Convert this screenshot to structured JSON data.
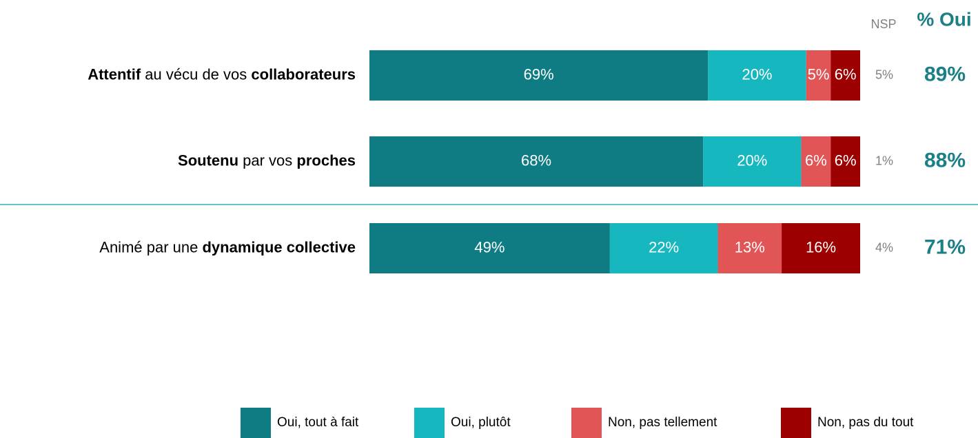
{
  "chart_data": {
    "type": "stacked_bar_horizontal",
    "categories": [
      [
        {
          "text": "Attentif",
          "bold": true
        },
        {
          "text": " au vécu de vos ",
          "bold": false
        },
        {
          "text": "collaborateurs",
          "bold": true
        }
      ],
      [
        {
          "text": "Soutenu",
          "bold": true
        },
        {
          "text": " par vos ",
          "bold": false
        },
        {
          "text": "proches",
          "bold": true
        }
      ],
      [
        {
          "text": "Animé par une ",
          "bold": false
        },
        {
          "text": "dynamique collective",
          "bold": true
        }
      ]
    ],
    "xlim": [
      0,
      100
    ],
    "series": [
      {
        "name": "Oui, tout à fait",
        "color": "#0f7c84",
        "values": [
          69,
          68,
          49
        ],
        "value_labels": [
          "69%",
          "68%",
          "49%"
        ]
      },
      {
        "name": "Oui, plutôt",
        "color": "#17b7c0",
        "values": [
          20,
          20,
          22
        ],
        "value_labels": [
          "20%",
          "20%",
          "22%"
        ]
      },
      {
        "name": "Non, pas tellement",
        "color": "#e15556",
        "values": [
          5,
          6,
          13
        ],
        "value_labels": [
          "5%",
          "6%",
          "13%"
        ]
      },
      {
        "name": "Non, pas du tout",
        "color": "#9c0000",
        "values": [
          6,
          6,
          16
        ],
        "value_labels": [
          "6%",
          "6%",
          "16%"
        ]
      }
    ],
    "nsp": {
      "header": "NSP",
      "values": [
        5,
        1,
        4
      ],
      "value_labels": [
        "5%",
        "1%",
        "4%"
      ]
    },
    "pct_oui": {
      "header": "% Oui",
      "values": [
        89,
        88,
        71
      ],
      "value_labels": [
        "89%",
        "88%",
        "71%"
      ]
    }
  }
}
